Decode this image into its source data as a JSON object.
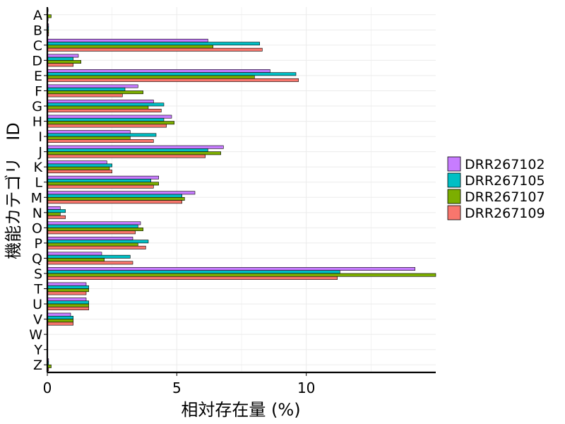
{
  "chart_data": {
    "type": "bar",
    "orientation": "horizontal",
    "title": "",
    "xlabel": "相対存在量 (%)",
    "ylabel": "機能カテゴリ　ID",
    "categories": [
      "A",
      "B",
      "C",
      "D",
      "E",
      "F",
      "G",
      "H",
      "I",
      "J",
      "K",
      "L",
      "M",
      "N",
      "O",
      "P",
      "Q",
      "S",
      "T",
      "U",
      "V",
      "W",
      "Y",
      "Z"
    ],
    "xlim": [
      0,
      15
    ],
    "xticks": [
      0,
      5,
      10
    ],
    "grid": true,
    "legend_position": "right",
    "series": [
      {
        "name": "DRR267102",
        "color": "#C77CFF",
        "values": [
          0.03,
          0.05,
          6.2,
          1.2,
          8.6,
          3.5,
          4.1,
          4.8,
          3.2,
          6.8,
          2.3,
          4.3,
          5.7,
          0.5,
          3.6,
          3.3,
          2.1,
          14.2,
          1.5,
          1.5,
          0.9,
          0,
          0,
          0.05
        ]
      },
      {
        "name": "DRR267105",
        "color": "#00BFC4",
        "values": [
          0.02,
          0.05,
          8.2,
          1.0,
          9.6,
          3.0,
          4.5,
          4.5,
          4.2,
          6.2,
          2.5,
          4.0,
          5.2,
          0.7,
          3.5,
          3.9,
          3.2,
          11.3,
          1.6,
          1.6,
          1.0,
          0,
          0,
          0.05
        ]
      },
      {
        "name": "DRR267107",
        "color": "#7CAE00",
        "values": [
          0.15,
          0.05,
          6.4,
          1.3,
          8.0,
          3.7,
          3.9,
          4.9,
          3.2,
          6.7,
          2.4,
          4.3,
          5.3,
          0.5,
          3.7,
          3.5,
          2.2,
          15.0,
          1.6,
          1.6,
          1.0,
          0,
          0,
          0.15
        ]
      },
      {
        "name": "DRR267109",
        "color": "#F8766D",
        "values": [
          0.03,
          0.05,
          8.3,
          1.0,
          9.7,
          2.9,
          4.4,
          4.6,
          4.1,
          6.1,
          2.5,
          4.1,
          5.2,
          0.7,
          3.4,
          3.8,
          3.3,
          11.2,
          1.5,
          1.6,
          1.0,
          0,
          0,
          0.05
        ]
      }
    ]
  }
}
